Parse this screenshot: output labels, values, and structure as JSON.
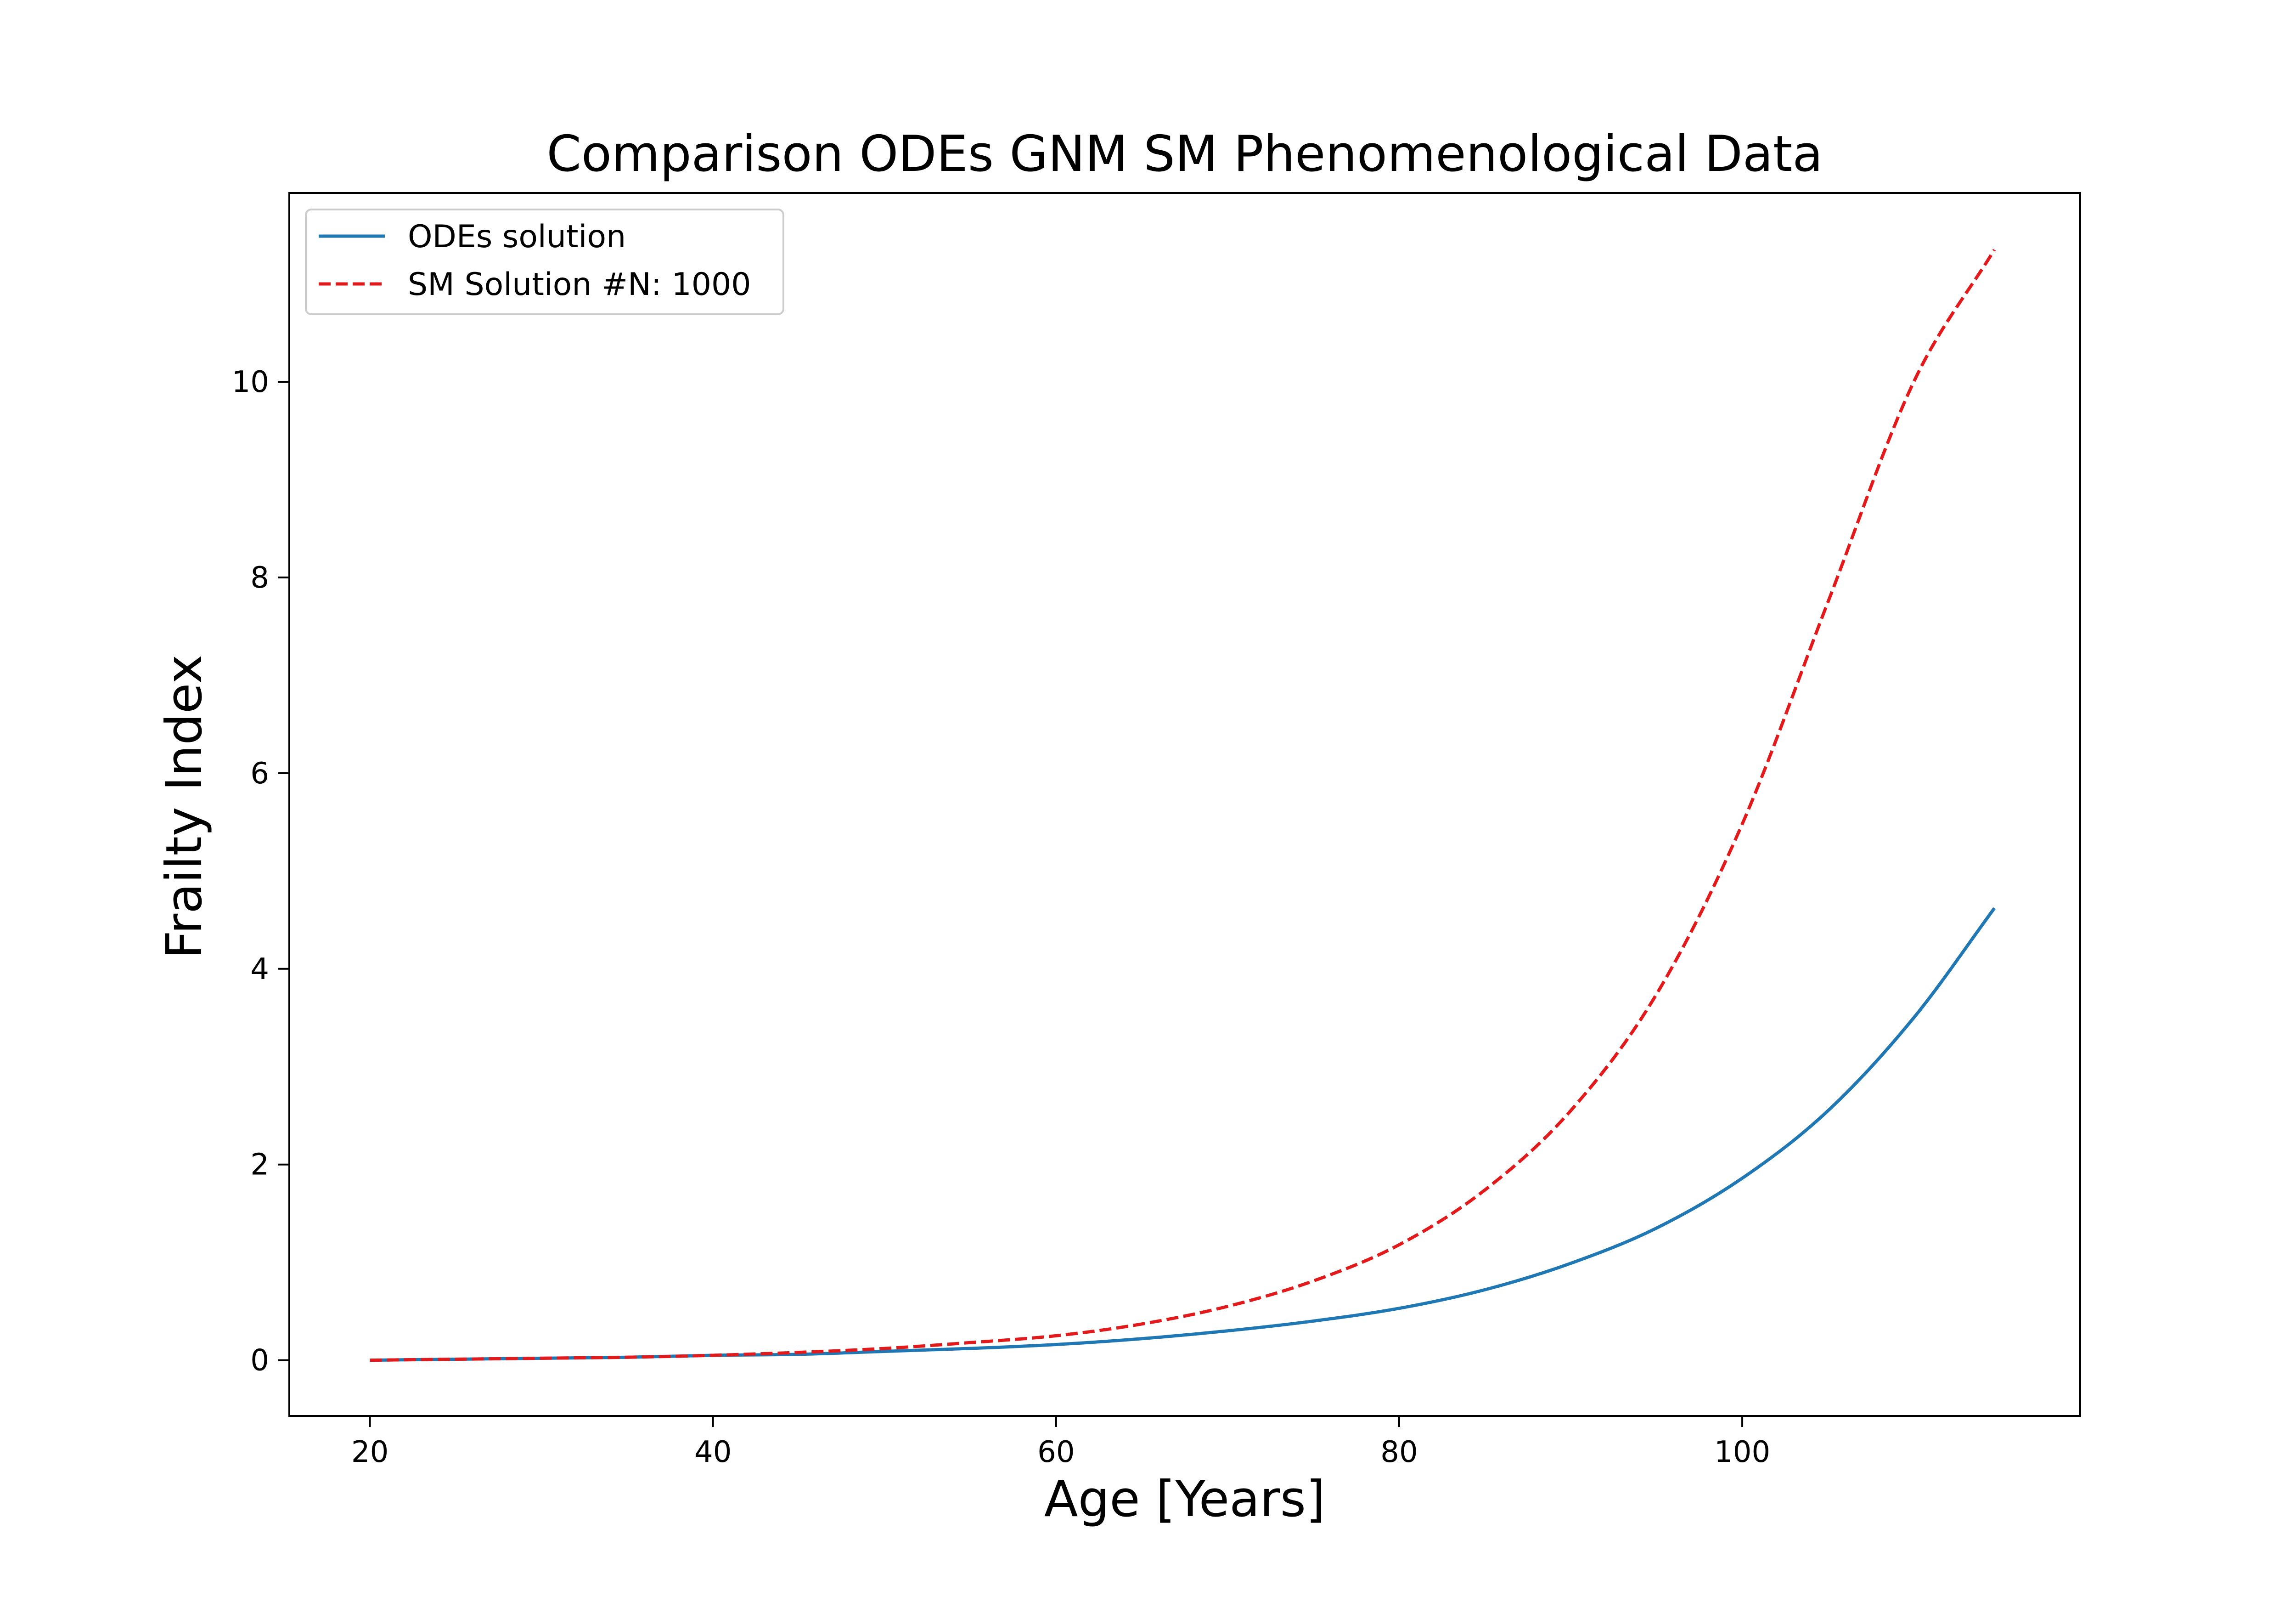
{
  "chart_data": {
    "type": "line",
    "title": "Comparison ODEs GNM SM Phenomenological Data",
    "xlabel": "Age [Years]",
    "ylabel": "Frailty Index",
    "xlim": [
      15.3,
      119.7
    ],
    "ylim": [
      -0.57,
      11.93
    ],
    "xticks": [
      20,
      40,
      60,
      80,
      100
    ],
    "yticks": [
      0,
      2,
      4,
      6,
      8,
      10
    ],
    "grid": false,
    "legend_position": "top-left",
    "x": [
      20,
      25,
      30,
      35,
      40,
      45,
      50,
      55,
      60,
      65,
      70,
      75,
      80,
      85,
      90,
      95,
      100,
      105,
      110,
      114.7
    ],
    "series": [
      {
        "name": "ODEs solution",
        "style": "solid",
        "color": "#1f77b4",
        "values": [
          0.0,
          0.01,
          0.02,
          0.03,
          0.05,
          0.06,
          0.09,
          0.12,
          0.16,
          0.22,
          0.3,
          0.4,
          0.53,
          0.72,
          0.99,
          1.35,
          1.86,
          2.55,
          3.5,
          4.62
        ]
      },
      {
        "name": "SM Solution #N: 1000",
        "style": "dashed",
        "color": "#e31a1c",
        "values": [
          0.0,
          0.01,
          0.02,
          0.03,
          0.05,
          0.08,
          0.12,
          0.18,
          0.25,
          0.37,
          0.55,
          0.81,
          1.18,
          1.74,
          2.55,
          3.74,
          5.48,
          7.75,
          10.0,
          11.35
        ]
      }
    ]
  }
}
